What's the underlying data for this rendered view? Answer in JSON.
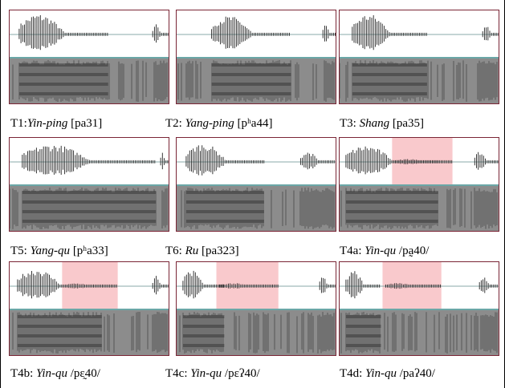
{
  "panels": [
    {
      "caption": {
        "prefix": "T1:",
        "italic": "Yin-ping",
        "suffix": " [pa31]"
      }
    },
    {
      "caption": {
        "prefix": "T2: ",
        "italic": "Yang-ping",
        "suffix": " [pʰa44]"
      }
    },
    {
      "caption": {
        "prefix": "T3: ",
        "italic": "Shang",
        "suffix": " [pa35]"
      }
    },
    {
      "caption": {
        "prefix": "T5: ",
        "italic": "Yang-qu",
        "suffix": " [pʰa33]"
      }
    },
    {
      "caption": {
        "prefix": "T6: ",
        "italic": "Ru",
        "suffix": " [pa323]"
      }
    },
    {
      "caption": {
        "prefix": "T4a: ",
        "italic": "Yin-qu",
        "suffix": " /pa̰40/"
      }
    },
    {
      "caption": {
        "prefix": "T4b: ",
        "italic": "Yin-qu",
        "suffix": " /pɛ̰40/"
      }
    },
    {
      "caption": {
        "prefix": "T4c: ",
        "italic": "Yin-qu",
        "suffix": " /pɛʔ40/"
      }
    },
    {
      "caption": {
        "prefix": "T4d: ",
        "italic": "Yin-qu",
        "suffix": " /paʔ40/"
      }
    }
  ]
}
